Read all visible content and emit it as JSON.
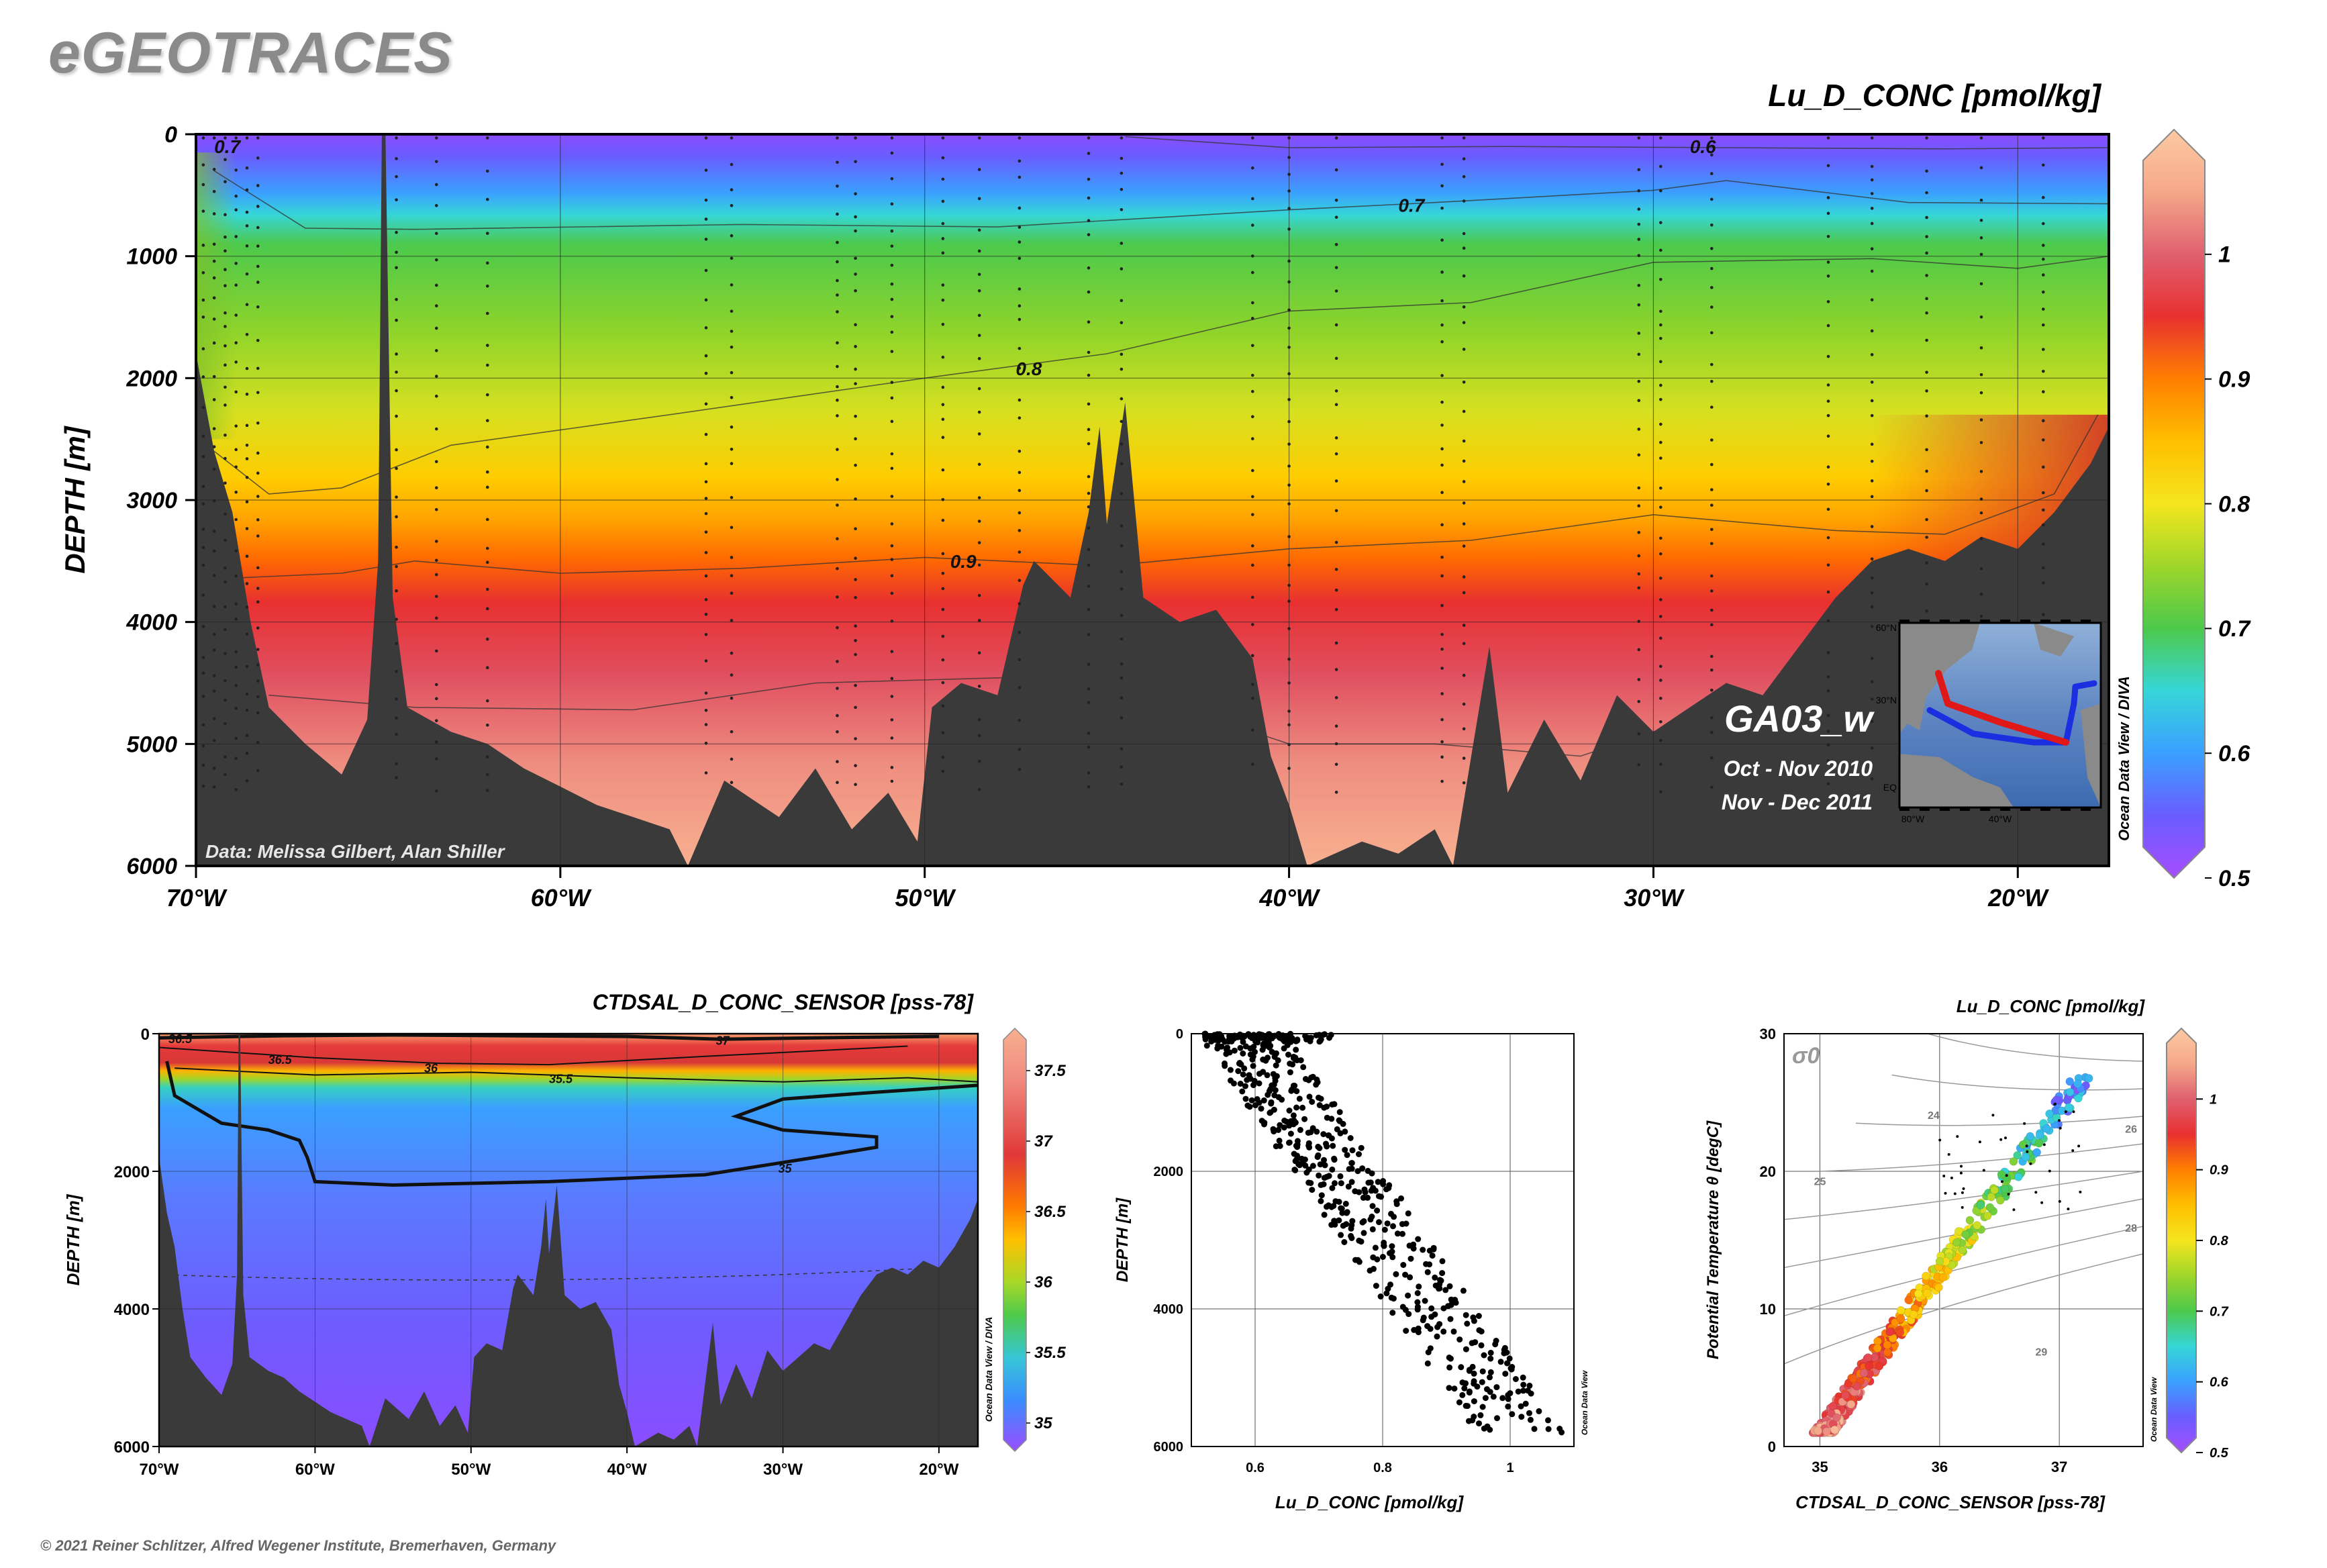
{
  "brand": "eGEOTRACES",
  "copyright": "© 2021 Reiner Schlitzer, Alfred Wegener Institute, Bremerhaven, Germany",
  "colorscale": [
    "#a64dff",
    "#6a5cff",
    "#3aa0ff",
    "#36d6d8",
    "#4cc94c",
    "#9fd62a",
    "#f5e51e",
    "#ffbf00",
    "#ff7f00",
    "#e83030",
    "#e06070",
    "#f5a88a",
    "#fcc9a3"
  ],
  "chart_data": [
    {
      "id": "main-section",
      "type": "heatmap",
      "title": "Lu_D_CONC [pmol/kg]",
      "ylabel": "DEPTH [m]",
      "xlabel": "",
      "x_ticks": [
        "70°W",
        "60°W",
        "50°W",
        "40°W",
        "30°W",
        "20°W"
      ],
      "x_tick_values": [
        -70,
        -60,
        -50,
        -40,
        -30,
        -20
      ],
      "y_ticks": [
        "0",
        "1000",
        "2000",
        "3000",
        "4000",
        "5000",
        "6000"
      ],
      "y_tick_values": [
        0,
        1000,
        2000,
        3000,
        4000,
        5000,
        6000
      ],
      "xlim": [
        -70,
        -17.5
      ],
      "ylim": [
        0,
        6000
      ],
      "colorbar": {
        "ticks": [
          "1",
          "0.9",
          "0.8",
          "0.7",
          "0.6",
          "0.5"
        ],
        "tick_values": [
          1,
          0.9,
          0.8,
          0.7,
          0.6,
          0.5
        ],
        "range": [
          0.5,
          1.1
        ]
      },
      "contour_labels": [
        {
          "text": "0.7",
          "lon": -69.5,
          "depth": 100
        },
        {
          "text": "0.6",
          "lon": -29,
          "depth": 100
        },
        {
          "text": "0.7",
          "lon": -37,
          "depth": 580
        },
        {
          "text": "0.8",
          "lon": -47.5,
          "depth": 1920
        },
        {
          "text": "0.9",
          "lon": -49.3,
          "depth": 3500
        }
      ],
      "contours": [
        {
          "level": 0.6,
          "points": [
            [
              -44.5,
              20
            ],
            [
              -40,
              110
            ],
            [
              -34,
              100
            ],
            [
              -28,
              110
            ],
            [
              -22,
              120
            ],
            [
              -17.5,
              110
            ]
          ]
        },
        {
          "level": 0.7,
          "points": [
            [
              -69.5,
              300
            ],
            [
              -67,
              770
            ],
            [
              -64,
              780
            ],
            [
              -55,
              740
            ],
            [
              -48,
              760
            ],
            [
              -40,
              620
            ],
            [
              -36,
              560
            ],
            [
              -30,
              460
            ],
            [
              -28,
              380
            ],
            [
              -23,
              560
            ],
            [
              -17.5,
              570
            ]
          ]
        },
        {
          "level": 0.8,
          "points": [
            [
              -69.5,
              2600
            ],
            [
              -68,
              2950
            ],
            [
              -66,
              2900
            ],
            [
              -63,
              2550
            ],
            [
              -57,
              2300
            ],
            [
              -50,
              2000
            ],
            [
              -45,
              1800
            ],
            [
              -40,
              1450
            ],
            [
              -35,
              1380
            ],
            [
              -30,
              1050
            ],
            [
              -24,
              1020
            ],
            [
              -20,
              1100
            ],
            [
              -17.5,
              1000
            ]
          ]
        },
        {
          "level": 0.9,
          "points": [
            [
              -69,
              3640
            ],
            [
              -66,
              3600
            ],
            [
              -64,
              3500
            ],
            [
              -60,
              3600
            ],
            [
              -55,
              3560
            ],
            [
              -50,
              3470
            ],
            [
              -45,
              3540
            ],
            [
              -40,
              3400
            ],
            [
              -35,
              3330
            ],
            [
              -30,
              3120
            ],
            [
              -25,
              3250
            ],
            [
              -22,
              3280
            ],
            [
              -19,
              2950
            ],
            [
              -17.8,
              2300
            ]
          ]
        },
        {
          "level": 1.0,
          "points": [
            [
              -68,
              4600
            ],
            [
              -64,
              4700
            ],
            [
              -58,
              4720
            ],
            [
              -53,
              4500
            ],
            [
              -47,
              4450
            ],
            [
              -43,
              4700
            ],
            [
              -40,
              5000
            ],
            [
              -36,
              5000
            ],
            [
              -32,
              5100
            ],
            [
              -28,
              4700
            ],
            [
              -25,
              4450
            ]
          ]
        }
      ],
      "bathymetry": [
        [
          -70,
          1800
        ],
        [
          -69.5,
          2600
        ],
        [
          -69,
          3100
        ],
        [
          -68.5,
          4000
        ],
        [
          -68,
          4700
        ],
        [
          -67,
          5000
        ],
        [
          -66,
          5250
        ],
        [
          -65.3,
          4800
        ],
        [
          -65,
          3500
        ],
        [
          -64.9,
          0
        ],
        [
          -64.8,
          0
        ],
        [
          -64.6,
          3800
        ],
        [
          -64.2,
          4700
        ],
        [
          -63,
          4900
        ],
        [
          -62,
          5000
        ],
        [
          -61,
          5200
        ],
        [
          -60,
          5350
        ],
        [
          -59,
          5500
        ],
        [
          -58,
          5600
        ],
        [
          -57,
          5700
        ],
        [
          -56.5,
          6000
        ],
        [
          -55.5,
          5300
        ],
        [
          -54,
          5600
        ],
        [
          -53,
          5200
        ],
        [
          -52,
          5700
        ],
        [
          -51,
          5400
        ],
        [
          -50.2,
          5800
        ],
        [
          -49.8,
          4700
        ],
        [
          -49,
          4500
        ],
        [
          -48,
          4600
        ],
        [
          -47.3,
          3700
        ],
        [
          -47,
          3500
        ],
        [
          -46,
          3800
        ],
        [
          -45.5,
          3100
        ],
        [
          -45.2,
          2400
        ],
        [
          -45,
          3200
        ],
        [
          -44.5,
          2200
        ],
        [
          -44,
          3800
        ],
        [
          -43,
          4000
        ],
        [
          -42,
          3900
        ],
        [
          -41,
          4300
        ],
        [
          -40.5,
          5100
        ],
        [
          -40,
          5500
        ],
        [
          -39.5,
          6000
        ],
        [
          -38,
          5800
        ],
        [
          -37,
          5900
        ],
        [
          -36,
          5700
        ],
        [
          -35.5,
          6000
        ],
        [
          -34.5,
          4200
        ],
        [
          -34,
          5400
        ],
        [
          -33,
          4800
        ],
        [
          -32,
          5300
        ],
        [
          -31,
          4600
        ],
        [
          -30,
          4900
        ],
        [
          -29,
          4700
        ],
        [
          -28,
          4500
        ],
        [
          -27,
          4600
        ],
        [
          -26,
          4200
        ],
        [
          -25.5,
          4000
        ],
        [
          -25,
          3800
        ],
        [
          -24,
          3500
        ],
        [
          -23,
          3400
        ],
        [
          -22,
          3500
        ],
        [
          -21,
          3300
        ],
        [
          -20,
          3400
        ],
        [
          -19,
          3100
        ],
        [
          -18,
          2700
        ],
        [
          -17.5,
          2400
        ]
      ],
      "station_lons": [
        -69.8,
        -69.5,
        -69.2,
        -68.9,
        -68.6,
        -68.3,
        -64.5,
        -63.4,
        -62,
        -56,
        -55.3,
        -52.4,
        -51.9,
        -50.9,
        -49.5,
        -48.5,
        -47.4,
        -45.5,
        -44.6,
        -41,
        -40,
        -38.7,
        -35.8,
        -35.2,
        -30.4,
        -29.8,
        -28.4,
        -25.2,
        -24,
        -22.5,
        -21,
        -19.3
      ],
      "annotation_credit": "Data: Melissa Gilbert, Alan Shiller",
      "cruise": {
        "name": "GA03_w",
        "dates": [
          "Oct - Nov 2010",
          "Nov - Dec 2011"
        ]
      },
      "inset_map": {
        "lat_labels": [
          "60°N",
          "30°N",
          "EQ"
        ],
        "lon_labels": [
          "80°W",
          "40°W"
        ]
      },
      "side_label": "Ocean Data View / DIVA"
    },
    {
      "id": "salinity-section",
      "type": "heatmap",
      "title": "CTDSAL_D_CONC_SENSOR [pss-78]",
      "ylabel": "DEPTH [m]",
      "xlabel": "",
      "x_ticks": [
        "70°W",
        "60°W",
        "50°W",
        "40°W",
        "30°W",
        "20°W"
      ],
      "x_tick_values": [
        -70,
        -60,
        -50,
        -40,
        -30,
        -20
      ],
      "y_ticks": [
        "0",
        "2000",
        "4000",
        "6000"
      ],
      "y_tick_values": [
        0,
        2000,
        4000,
        6000
      ],
      "xlim": [
        -70,
        -17.5
      ],
      "ylim": [
        0,
        6000
      ],
      "colorbar": {
        "ticks": [
          "37.5",
          "37",
          "36.5",
          "36",
          "35.5",
          "35"
        ],
        "tick_values": [
          37.5,
          37,
          36.5,
          36,
          35.5,
          35
        ],
        "range": [
          34.8,
          37.8
        ]
      },
      "contour_labels": [
        {
          "text": "36.5",
          "lon": -69.4,
          "depth": 80
        },
        {
          "text": "36.5",
          "lon": -63,
          "depth": 380
        },
        {
          "text": "36",
          "lon": -53,
          "depth": 500
        },
        {
          "text": "37",
          "lon": -34.3,
          "depth": 100
        },
        {
          "text": "35.5",
          "lon": -45,
          "depth": 660
        },
        {
          "text": "35",
          "lon": -30.3,
          "depth": 1960
        }
      ],
      "side_label": "Ocean Data View / DIVA"
    },
    {
      "id": "profile-scatter",
      "type": "scatter",
      "title": "",
      "xlabel": "Lu_D_CONC [pmol/kg]",
      "ylabel": "DEPTH [m]",
      "x_ticks": [
        "0.6",
        "0.8",
        "1"
      ],
      "x_tick_values": [
        0.6,
        0.8,
        1.0
      ],
      "y_ticks": [
        "0",
        "2000",
        "4000",
        "6000"
      ],
      "y_tick_values": [
        0,
        2000,
        4000,
        6000
      ],
      "xlim": [
        0.5,
        1.1
      ],
      "ylim": [
        0,
        6000
      ],
      "side_label": "Ocean Data View"
    },
    {
      "id": "ts-scatter",
      "type": "scatter",
      "title": "Lu_D_CONC [pmol/kg]",
      "xlabel": "CTDSAL_D_CONC_SENSOR [pss-78]",
      "ylabel": "Potential Temperature θ [degC]",
      "x_ticks": [
        "35",
        "36",
        "37"
      ],
      "x_tick_values": [
        35,
        36,
        37
      ],
      "y_ticks": [
        "0",
        "10",
        "20",
        "30"
      ],
      "y_tick_values": [
        0,
        10,
        20,
        30
      ],
      "xlim": [
        34.7,
        37.7
      ],
      "ylim": [
        0,
        30
      ],
      "sigma_label": "σ0",
      "sigma_ticks": [
        "24",
        "25",
        "26",
        "28",
        "29"
      ],
      "colorbar": {
        "ticks": [
          "1",
          "0.9",
          "0.8",
          "0.7",
          "0.6",
          "0.5"
        ],
        "tick_values": [
          1,
          0.9,
          0.8,
          0.7,
          0.6,
          0.5
        ],
        "range": [
          0.5,
          1.1
        ]
      },
      "side_label": "Ocean Data View"
    }
  ]
}
